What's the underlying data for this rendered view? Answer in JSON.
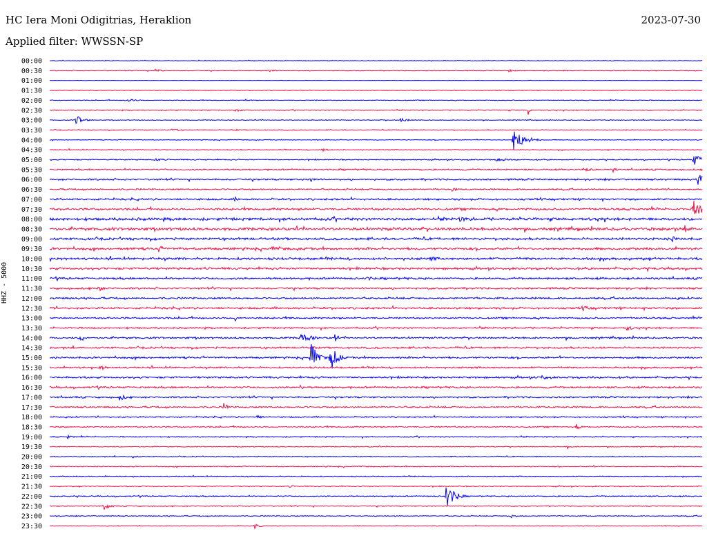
{
  "header": {
    "station": "HC Iera Moni Odigitrias, Heraklion",
    "filter": "Applied filter: WWSSN-SP",
    "date": "2023-07-30"
  },
  "colors": {
    "trace_a": "#0000ee",
    "trace_b": "#ee1144",
    "text": "#000000"
  },
  "chart_data": {
    "type": "line",
    "title": "HC Iera Moni Odigitrias, Heraklion",
    "subtitle": "Applied filter: WWSSN-SP",
    "ylabel": "HHZ - 5000",
    "xlabel": "",
    "grid": false,
    "row_labels": [
      "00:00",
      "00:30",
      "01:00",
      "01:30",
      "02:00",
      "02:30",
      "03:00",
      "03:30",
      "04:00",
      "04:30",
      "05:00",
      "05:30",
      "06:00",
      "06:30",
      "07:00",
      "07:30",
      "08:00",
      "08:30",
      "09:00",
      "09:30",
      "10:00",
      "10:30",
      "11:00",
      "11:30",
      "12:00",
      "12:30",
      "13:00",
      "13:30",
      "14:00",
      "14:30",
      "15:00",
      "15:30",
      "16:00",
      "16:30",
      "17:00",
      "17:30",
      "18:00",
      "18:30",
      "19:00",
      "19:30",
      "20:00",
      "20:30",
      "21:00",
      "21:30",
      "22:00",
      "22:30",
      "23:00",
      "23:30"
    ],
    "row_minutes": 30,
    "row_noise": [
      0.3,
      0.4,
      0.2,
      0.3,
      0.4,
      0.5,
      0.4,
      0.5,
      0.4,
      0.5,
      0.6,
      0.8,
      0.9,
      0.8,
      1.0,
      1.2,
      1.5,
      1.6,
      1.3,
      1.3,
      1.3,
      1.2,
      1.1,
      1.0,
      1.0,
      1.1,
      0.9,
      0.9,
      1.0,
      1.0,
      1.0,
      0.9,
      1.0,
      1.0,
      0.9,
      0.9,
      0.7,
      0.7,
      0.6,
      0.5,
      0.5,
      0.5,
      0.5,
      0.5,
      0.6,
      0.5,
      0.5,
      0.4
    ],
    "events": [
      {
        "row": 1,
        "minute": 4.8,
        "amplitude": 3,
        "duration": 0.9
      },
      {
        "row": 1,
        "minute": 10.1,
        "amplitude": 3,
        "duration": 0.8
      },
      {
        "row": 1,
        "minute": 21.1,
        "amplitude": 2,
        "duration": 1.0
      },
      {
        "row": 4,
        "minute": 3.5,
        "amplitude": 3,
        "duration": 1.2
      },
      {
        "row": 4,
        "minute": 9.0,
        "amplitude": 2,
        "duration": 0.8
      },
      {
        "row": 5,
        "minute": 8.5,
        "amplitude": 3,
        "duration": 0.9
      },
      {
        "row": 5,
        "minute": 22.0,
        "amplitude": 7,
        "duration": 0.2
      },
      {
        "row": 6,
        "minute": 1.2,
        "amplitude": 8,
        "duration": 0.9
      },
      {
        "row": 6,
        "minute": 16.1,
        "amplitude": 3,
        "duration": 1.5
      },
      {
        "row": 7,
        "minute": 5.6,
        "amplitude": 3,
        "duration": 0.8
      },
      {
        "row": 7,
        "minute": 8.5,
        "amplitude": 2,
        "duration": 0.6
      },
      {
        "row": 8,
        "minute": 21.3,
        "amplitude": 18,
        "duration": 1.4
      },
      {
        "row": 9,
        "minute": 12.5,
        "amplitude": 3,
        "duration": 0.9
      },
      {
        "row": 10,
        "minute": 4.8,
        "amplitude": 3,
        "duration": 1.2
      },
      {
        "row": 10,
        "minute": 20.5,
        "amplitude": 3,
        "duration": 1.8
      },
      {
        "row": 10,
        "minute": 29.6,
        "amplitude": 11,
        "duration": 0.9
      },
      {
        "row": 11,
        "minute": 24.5,
        "amplitude": 3,
        "duration": 1.5
      },
      {
        "row": 11,
        "minute": 25.9,
        "amplitude": 4,
        "duration": 0.5
      },
      {
        "row": 12,
        "minute": 12.0,
        "amplitude": 6,
        "duration": 0.5
      },
      {
        "row": 12,
        "minute": 29.8,
        "amplitude": 10,
        "duration": 1.0
      },
      {
        "row": 13,
        "minute": 18.5,
        "amplitude": 3,
        "duration": 0.8
      },
      {
        "row": 14,
        "minute": 8.5,
        "amplitude": 4,
        "duration": 0.6
      },
      {
        "row": 15,
        "minute": 29.6,
        "amplitude": 14,
        "duration": 1.2
      },
      {
        "row": 16,
        "minute": 18.8,
        "amplitude": 4,
        "duration": 1.6
      },
      {
        "row": 17,
        "minute": 29.2,
        "amplitude": 6,
        "duration": 1.0
      },
      {
        "row": 18,
        "minute": 28.6,
        "amplitude": 5,
        "duration": 0.8
      },
      {
        "row": 19,
        "minute": 5.0,
        "amplitude": 5,
        "duration": 1.0
      },
      {
        "row": 19,
        "minute": 10.2,
        "amplitude": 4,
        "duration": 0.8
      },
      {
        "row": 20,
        "minute": 17.5,
        "amplitude": 5,
        "duration": 0.6
      },
      {
        "row": 22,
        "minute": 14.5,
        "amplitude": 4,
        "duration": 1.2
      },
      {
        "row": 23,
        "minute": 2.2,
        "amplitude": 7,
        "duration": 0.6
      },
      {
        "row": 25,
        "minute": 24.5,
        "amplitude": 4,
        "duration": 1.2
      },
      {
        "row": 26,
        "minute": 8.5,
        "amplitude": 5,
        "duration": 0.6
      },
      {
        "row": 27,
        "minute": 26.5,
        "amplitude": 5,
        "duration": 0.8
      },
      {
        "row": 28,
        "minute": 1.4,
        "amplitude": 7,
        "duration": 0.6
      },
      {
        "row": 28,
        "minute": 11.5,
        "amplitude": 8,
        "duration": 1.5
      },
      {
        "row": 28,
        "minute": 13.1,
        "amplitude": 14,
        "duration": 0.2
      },
      {
        "row": 30,
        "minute": 12.0,
        "amplitude": 24,
        "duration": 0.8
      },
      {
        "row": 30,
        "minute": 12.9,
        "amplitude": 22,
        "duration": 0.8
      },
      {
        "row": 31,
        "minute": 2.3,
        "amplitude": 5,
        "duration": 0.8
      },
      {
        "row": 32,
        "minute": 22.5,
        "amplitude": 5,
        "duration": 1.2
      },
      {
        "row": 33,
        "minute": 11.5,
        "amplitude": 4,
        "duration": 0.6
      },
      {
        "row": 34,
        "minute": 3.2,
        "amplitude": 6,
        "duration": 0.8
      },
      {
        "row": 35,
        "minute": 8.0,
        "amplitude": 6,
        "duration": 0.6
      },
      {
        "row": 36,
        "minute": 9.5,
        "amplitude": 3,
        "duration": 1.0
      },
      {
        "row": 37,
        "minute": 24.2,
        "amplitude": 5,
        "duration": 0.6
      },
      {
        "row": 38,
        "minute": 0.8,
        "amplitude": 3,
        "duration": 0.8
      },
      {
        "row": 39,
        "minute": 23.8,
        "amplitude": 3,
        "duration": 0.5
      },
      {
        "row": 40,
        "minute": 3.8,
        "amplitude": 3,
        "duration": 0.8
      },
      {
        "row": 41,
        "minute": 25.0,
        "amplitude": 2,
        "duration": 0.5
      },
      {
        "row": 43,
        "minute": 11.0,
        "amplitude": 2,
        "duration": 1.0
      },
      {
        "row": 44,
        "minute": 18.2,
        "amplitude": 22,
        "duration": 1.0
      },
      {
        "row": 45,
        "minute": 2.5,
        "amplitude": 6,
        "duration": 0.8
      },
      {
        "row": 46,
        "minute": 21.2,
        "amplitude": 3,
        "duration": 1.0
      },
      {
        "row": 47,
        "minute": 9.4,
        "amplitude": 5,
        "duration": 0.6
      }
    ]
  }
}
